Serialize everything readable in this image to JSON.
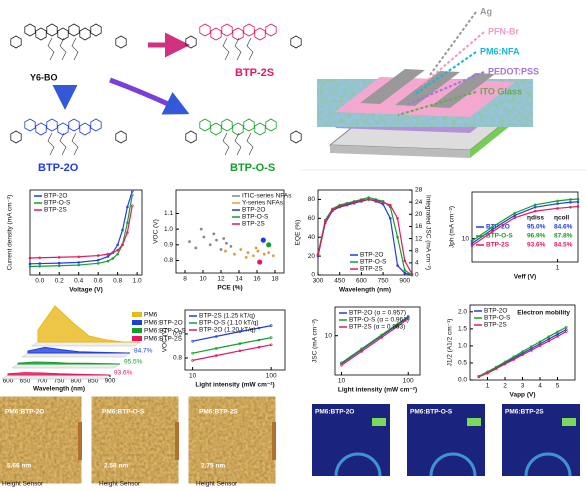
{
  "schemes": {
    "molecules": [
      "Y6-BO",
      "BTP-2S",
      "BTP-2O",
      "BTP-O-S"
    ]
  },
  "device": {
    "layers": [
      "Ag",
      "PFN-Br",
      "PM6:NFA",
      "PEDOT:PSS",
      "ITO Glass"
    ]
  },
  "chart_data": [
    {
      "type": "line",
      "xlabel": "Voltage (V)",
      "ylabel": "Current density (mA cm⁻²)",
      "xlim": [
        -0.1,
        1.05
      ],
      "ylim": [
        -30,
        5
      ],
      "xticks": [
        {
          "value": 0,
          "label": "0.0"
        },
        {
          "value": 0.2,
          "label": "0.2"
        },
        {
          "value": 0.4,
          "label": "0.4"
        },
        {
          "value": 0.6,
          "label": "0.6"
        },
        {
          "value": 0.8,
          "label": "0.8"
        },
        {
          "value": 1,
          "label": "1.0"
        }
      ],
      "legend": "upper left",
      "x": [
        -0.1,
        0,
        0.2,
        0.4,
        0.6,
        0.7,
        0.75,
        0.8,
        0.85,
        0.9,
        0.95
      ],
      "series": [
        {
          "name": "BTP-2O",
          "color": "#1f3ee0",
          "values": [
            -25.4,
            -25.3,
            -25.1,
            -24.8,
            -23.9,
            -22.4,
            -20.8,
            -17.6,
            -11.5,
            -2.0,
            4.5
          ]
        },
        {
          "name": "BTP-O-S",
          "color": "#12a02a",
          "values": [
            -26.5,
            -26.4,
            -26.2,
            -25.9,
            -25.2,
            -24.3,
            -23.2,
            -21.4,
            -17.5,
            -8.5,
            3.0
          ]
        },
        {
          "name": "BTP-2S",
          "color": "#e8175d",
          "values": [
            -23.0,
            -22.9,
            -22.7,
            -22.5,
            -22.0,
            -21.4,
            -20.8,
            -19.8,
            -17.6,
            -12.5,
            -1.5
          ]
        }
      ]
    },
    {
      "type": "scatter",
      "xlabel": "PCE (%)",
      "ylabel": "VOC (V)",
      "xlim": [
        7,
        19
      ],
      "ylim": [
        0.72,
        1.25
      ],
      "xticks": [
        8,
        10,
        12,
        14,
        16,
        18
      ],
      "yticks": [
        0.8,
        0.9,
        {
          "value": 1,
          "label": "1.0"
        },
        1.1
      ],
      "legend": "upper right",
      "series": [
        {
          "name": "ITIC-series NFAs",
          "color": "#888888",
          "x": [
            8.5,
            9.2,
            10.1,
            10.8,
            11.5,
            12.0,
            12.6,
            13.1,
            9.8,
            11.2,
            12.3
          ],
          "values": [
            0.92,
            0.88,
            0.95,
            0.9,
            0.93,
            0.87,
            0.91,
            0.89,
            1.0,
            0.97,
            0.94
          ]
        },
        {
          "name": "Y-series NFAs",
          "color": "#e39a3b",
          "x": [
            12.5,
            13.5,
            14.2,
            15.0,
            15.6,
            16.1,
            16.8,
            17.3,
            14.8,
            15.9,
            17.8
          ],
          "values": [
            0.86,
            0.84,
            0.87,
            0.85,
            0.83,
            0.86,
            0.84,
            0.85,
            0.82,
            0.88,
            0.83
          ]
        },
        {
          "name": "BTP-2O",
          "color": "#1f3ee0",
          "x": [
            16.7
          ],
          "values": [
            0.93
          ]
        },
        {
          "name": "BTP-O-S",
          "color": "#12a02a",
          "x": [
            17.3
          ],
          "values": [
            0.9
          ]
        },
        {
          "name": "BTP-2S",
          "color": "#e8175d",
          "x": [
            16.3
          ],
          "values": [
            0.79
          ]
        }
      ]
    },
    {
      "type": "line",
      "xlabel": "Wavelength (nm)",
      "ylabel": "EQE (%)",
      "y2label": "Integrated JSC (mA cm⁻²)",
      "xlim": [
        300,
        950
      ],
      "xticks": [
        300,
        450,
        600,
        750,
        900
      ],
      "ylim": [
        0,
        90
      ],
      "yticks": [
        0,
        20,
        40,
        60,
        80
      ],
      "y2lim": [
        0,
        28
      ],
      "y2ticks": [
        0,
        4,
        8,
        12,
        16,
        20,
        24,
        28
      ],
      "legend": "lower center",
      "x": [
        300,
        350,
        400,
        450,
        500,
        550,
        600,
        650,
        700,
        750,
        800,
        850,
        900,
        950
      ],
      "series": [
        {
          "name": "BTP-2O",
          "color": "#1f3ee0",
          "values": [
            20,
            55,
            68,
            72,
            74,
            76,
            78,
            80,
            78,
            75,
            60,
            10,
            2,
            0
          ]
        },
        {
          "name": "BTP-O-S",
          "color": "#12a02a",
          "values": [
            22,
            58,
            70,
            74,
            76,
            78,
            80,
            82,
            80,
            78,
            72,
            40,
            5,
            0
          ]
        },
        {
          "name": "BTP-2S",
          "color": "#e8175d",
          "values": [
            21,
            56,
            69,
            73,
            75,
            77,
            79,
            80,
            79,
            77,
            74,
            60,
            15,
            1
          ]
        }
      ]
    },
    {
      "type": "line",
      "xlabel": "Veff (V)",
      "ylabel": "Jph (mA cm⁻²)",
      "xscale": "log",
      "xlim": [
        0.01,
        3
      ],
      "xticks": [
        1
      ],
      "ylim": [
        0,
        30
      ],
      "yticks": [
        10
      ],
      "table_headers": [
        "ηdiss",
        "ηcoll"
      ],
      "x": [
        0.01,
        0.03,
        0.1,
        0.3,
        1,
        2,
        3
      ],
      "series": [
        {
          "name": "BTP-2O",
          "color": "#1f3ee0",
          "eta_diss": "95.0%",
          "eta_coll": "84.6%",
          "values": [
            8,
            14,
            20,
            23.5,
            25,
            25.6,
            25.8
          ]
        },
        {
          "name": "BTP-O-S",
          "color": "#12a02a",
          "eta_diss": "96.9%",
          "eta_coll": "87.8%",
          "values": [
            9,
            15,
            21,
            24.5,
            26.2,
            26.8,
            27
          ]
        },
        {
          "name": "BTP-2S",
          "color": "#e8175d",
          "eta_diss": "93.6%",
          "eta_coll": "84.5%",
          "values": [
            7,
            13,
            19,
            21.8,
            23,
            23.5,
            23.8
          ]
        }
      ]
    },
    {
      "type": "waterfall",
      "xlabel": "Wavelength (nm)",
      "xlim": [
        600,
        900
      ],
      "xticks": [
        600,
        650,
        700,
        750,
        800,
        850,
        900
      ],
      "ylim": [
        0,
        1
      ],
      "x": [
        600,
        650,
        700,
        750,
        800,
        850,
        900
      ],
      "annotations": [
        "84.7%",
        "95.5%",
        "93.6%"
      ],
      "series": [
        {
          "name": "PM6",
          "color": "#e8b81a",
          "values": [
            0.3,
            0.9,
            0.5,
            0.15,
            0.05,
            0,
            0
          ]
        },
        {
          "name": "PM6:BTP-2O",
          "color": "#1f3ee0",
          "values": [
            0.05,
            0.14,
            0.08,
            0.03,
            0.02,
            0.01,
            0
          ]
        },
        {
          "name": "PM6:BTP-O-S",
          "color": "#12a02a",
          "values": [
            0.02,
            0.05,
            0.04,
            0.02,
            0.02,
            0.01,
            0
          ]
        },
        {
          "name": "PM6:BTP-2S",
          "color": "#e8175d",
          "values": [
            0.03,
            0.06,
            0.05,
            0.03,
            0.02,
            0.01,
            0
          ]
        }
      ]
    },
    {
      "type": "line",
      "xlabel": "Light intensity (mW cm⁻²)",
      "ylabel": "VOC (V)",
      "xscale": "log",
      "xlim": [
        8,
        150
      ],
      "xticks": [
        10,
        100
      ],
      "ylim": [
        0.75,
        1.0
      ],
      "yticks": [
        0.8,
        0.9
      ],
      "legend": "upper left",
      "x": [
        10,
        20,
        40,
        70,
        100
      ],
      "series": [
        {
          "name": "BTP-2S (1.25 kT/q)",
          "color": "#1f3ee0",
          "values": [
            0.87,
            0.89,
            0.91,
            0.925,
            0.935
          ]
        },
        {
          "name": "BTP-O-S (1.10 kT/q)",
          "color": "#12a02a",
          "values": [
            0.82,
            0.84,
            0.86,
            0.875,
            0.885
          ]
        },
        {
          "name": "BTP-2O (1.20 kT/q)",
          "color": "#e8175d",
          "values": [
            0.79,
            0.81,
            0.83,
            0.845,
            0.855
          ]
        }
      ]
    },
    {
      "type": "line",
      "xlabel": "Light intensity (mW cm⁻²)",
      "ylabel": "JSC (mA cm⁻²)",
      "xscale": "log",
      "yscale": "log",
      "xlim": [
        8,
        150
      ],
      "xticks": [
        10,
        100
      ],
      "ylim": [
        1.5,
        40
      ],
      "yticks": [
        10
      ],
      "legend": "upper left",
      "x": [
        10,
        20,
        40,
        70,
        100
      ],
      "series": [
        {
          "name": "BTP-2O (α = 0.957)",
          "color": "#1f3ee0",
          "values": [
            2.6,
            5.1,
            10.0,
            17.2,
            24.4
          ]
        },
        {
          "name": "BTP-O-S (α = 0.961)",
          "color": "#12a02a",
          "values": [
            2.7,
            5.3,
            10.4,
            17.9,
            25.5
          ]
        },
        {
          "name": "BTP-2S (α = 0.963)",
          "color": "#e8175d",
          "values": [
            2.4,
            4.7,
            9.2,
            15.8,
            22.6
          ]
        }
      ]
    },
    {
      "type": "line",
      "title": "Electron mobility",
      "xlabel": "Vapp (V)",
      "ylabel": "J1/2 (A1/2 cm⁻¹)",
      "xlim": [
        0,
        6
      ],
      "xticks": [
        1,
        2,
        3,
        4,
        5
      ],
      "ylim": [
        0,
        2.2
      ],
      "yticks": [
        {
          "value": 0,
          "label": "0.0"
        },
        0.5,
        {
          "value": 1,
          "label": "1.0"
        },
        1.5,
        {
          "value": 2,
          "label": "2.0"
        }
      ],
      "legend": "upper left",
      "x": [
        0.5,
        1,
        1.5,
        2,
        2.5,
        3,
        3.5,
        4,
        4.5,
        5,
        5.5
      ],
      "series": [
        {
          "name": "BTP-2O",
          "color": "#1f3ee0",
          "values": [
            0.1,
            0.22,
            0.36,
            0.5,
            0.64,
            0.78,
            0.92,
            1.06,
            1.2,
            1.34,
            1.48
          ]
        },
        {
          "name": "BTP-O-S",
          "color": "#12a02a",
          "values": [
            0.11,
            0.24,
            0.38,
            0.53,
            0.68,
            0.83,
            0.98,
            1.12,
            1.27,
            1.41,
            1.55
          ]
        },
        {
          "name": "BTP-2S",
          "color": "#e8175d",
          "values": [
            0.09,
            0.2,
            0.33,
            0.47,
            0.6,
            0.74,
            0.87,
            1.01,
            1.14,
            1.28,
            1.42
          ]
        }
      ]
    }
  ],
  "afm": {
    "images": [
      {
        "label": "PM6:BTP-2O",
        "roughness": "5.66 nm"
      },
      {
        "label": "PM6:BTP-O-S",
        "roughness": "2.58 nm"
      },
      {
        "label": "PM6:BTP-2S",
        "roughness": "2.75 nm"
      }
    ],
    "sensor": "Height Sensor"
  },
  "giwaxs": {
    "images": [
      "PM6:BTP-2O",
      "PM6:BTP-O-S",
      "PM6:BTP-2S"
    ]
  }
}
